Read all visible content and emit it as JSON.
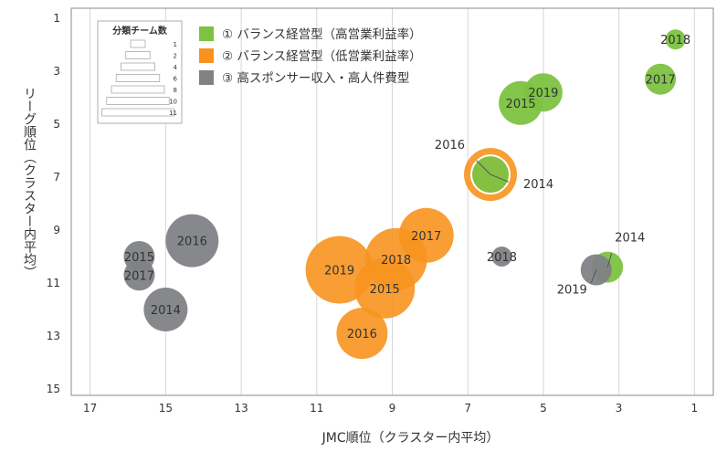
{
  "chart_data": {
    "type": "scatter",
    "xlabel": "JMC順位（クラスター内平均）",
    "ylabel": "リーグ順位（クラスター内平均）",
    "xlim": [
      17.5,
      0.5
    ],
    "ylim": [
      1,
      15
    ],
    "x_reversed": true,
    "y_reversed": true,
    "x_ticks": [
      17,
      15,
      13,
      11,
      9,
      7,
      5,
      3,
      1
    ],
    "y_ticks": [
      1,
      3,
      5,
      7,
      9,
      11,
      13,
      15
    ],
    "grid": "vertical",
    "legend_position": "top-left",
    "series": [
      {
        "name": "① バランス経営型（高営業利益率）",
        "color": "#7dc242",
        "points": [
          {
            "label": "2018",
            "x": 1.5,
            "y": 1.8,
            "size": 1
          },
          {
            "label": "2017",
            "x": 1.9,
            "y": 3.3,
            "size": 2
          },
          {
            "label": "2019",
            "x": 5.0,
            "y": 3.8,
            "size": 3
          },
          {
            "label": "2015",
            "x": 5.6,
            "y": 4.2,
            "size": 4
          },
          {
            "label": "2016",
            "x": 6.4,
            "y": 6.9,
            "size": 3
          },
          {
            "label": "2014",
            "x": 3.3,
            "y": 10.4,
            "size": 2
          }
        ]
      },
      {
        "name": "② バランス経営型（低営業利益率）",
        "color": "#f7931e",
        "points": [
          {
            "label": "2014",
            "x": 6.4,
            "y": 6.9,
            "size": 5
          },
          {
            "label": "2017",
            "x": 8.1,
            "y": 9.2,
            "size": 7
          },
          {
            "label": "2018",
            "x": 8.9,
            "y": 10.1,
            "size": 9
          },
          {
            "label": "2019",
            "x": 10.4,
            "y": 10.5,
            "size": 11
          },
          {
            "label": "2015",
            "x": 9.2,
            "y": 11.2,
            "size": 10
          },
          {
            "label": "2016",
            "x": 9.8,
            "y": 12.9,
            "size": 8
          }
        ]
      },
      {
        "name": "③ 高スポンサー収入・高人件費型",
        "color": "#808285",
        "points": [
          {
            "label": "2016",
            "x": 14.3,
            "y": 9.4,
            "size": 5
          },
          {
            "label": "2015",
            "x": 15.7,
            "y": 10.0,
            "size": 2
          },
          {
            "label": "2017",
            "x": 15.7,
            "y": 10.7,
            "size": 2
          },
          {
            "label": "2014",
            "x": 15.0,
            "y": 12.0,
            "size": 4
          },
          {
            "label": "2018",
            "x": 6.1,
            "y": 10.0,
            "size": 1
          },
          {
            "label": "2019",
            "x": 3.6,
            "y": 10.5,
            "size": 2
          }
        ]
      }
    ],
    "size_legend": {
      "title": "分類チーム数",
      "levels": [
        "1",
        "2",
        "4",
        "6",
        "8",
        "10",
        "11"
      ]
    }
  }
}
